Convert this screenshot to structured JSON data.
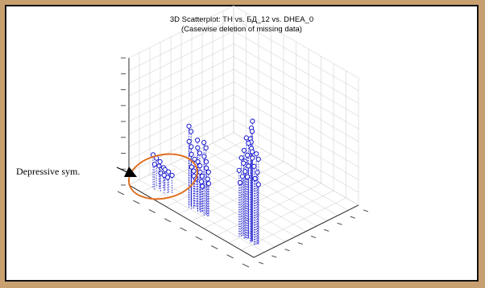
{
  "title_line1": "3D Scatterplot: TH vs. БД_12 vs. DHEA_0",
  "title_line2": "(Casewise deletion of missing data)",
  "annotation": "Depressive sym.",
  "colors": {
    "frame": "#c8a070",
    "panel": "#ffffff",
    "grid": "#c8c8c8",
    "points": "#1a1ad0",
    "ellipse": "#e07020",
    "arrow": "#000000"
  },
  "chart_data": {
    "type": "scatter",
    "title": "3D Scatterplot: TH vs. БД_12 vs. DHEA_0",
    "subtitle": "(Casewise deletion of missing data)",
    "axes": [
      "TH",
      "БД_12",
      "DHEA_0"
    ],
    "grid": true,
    "style": "3d scatter with vertical drop lines",
    "series": [
      {
        "group": "left cluster",
        "points": [
          {
            "x": 0.11,
            "y": 0.1,
            "z": 0.26
          },
          {
            "x": 0.12,
            "y": 0.12,
            "z": 0.23
          },
          {
            "x": 0.13,
            "y": 0.09,
            "z": 0.2
          },
          {
            "x": 0.15,
            "y": 0.11,
            "z": 0.19
          },
          {
            "x": 0.16,
            "y": 0.14,
            "z": 0.17
          },
          {
            "x": 0.17,
            "y": 0.1,
            "z": 0.15
          },
          {
            "x": 0.18,
            "y": 0.13,
            "z": 0.17
          },
          {
            "x": 0.19,
            "y": 0.11,
            "z": 0.14
          },
          {
            "x": 0.2,
            "y": 0.14,
            "z": 0.16
          },
          {
            "x": 0.21,
            "y": 0.12,
            "z": 0.13
          },
          {
            "x": 0.22,
            "y": 0.15,
            "z": 0.14
          },
          {
            "x": 0.14,
            "y": 0.13,
            "z": 0.21
          }
        ]
      },
      {
        "group": "middle cluster",
        "points": [
          {
            "x": 0.38,
            "y": 0.12,
            "z": 0.63
          },
          {
            "x": 0.38,
            "y": 0.14,
            "z": 0.58
          },
          {
            "x": 0.39,
            "y": 0.11,
            "z": 0.52
          },
          {
            "x": 0.39,
            "y": 0.13,
            "z": 0.47
          },
          {
            "x": 0.4,
            "y": 0.12,
            "z": 0.42
          },
          {
            "x": 0.4,
            "y": 0.15,
            "z": 0.37
          },
          {
            "x": 0.41,
            "y": 0.11,
            "z": 0.33
          },
          {
            "x": 0.41,
            "y": 0.13,
            "z": 0.29
          },
          {
            "x": 0.42,
            "y": 0.12,
            "z": 0.26
          },
          {
            "x": 0.42,
            "y": 0.14,
            "z": 0.23
          },
          {
            "x": 0.44,
            "y": 0.13,
            "z": 0.55
          },
          {
            "x": 0.45,
            "y": 0.12,
            "z": 0.5
          },
          {
            "x": 0.45,
            "y": 0.14,
            "z": 0.45
          },
          {
            "x": 0.46,
            "y": 0.11,
            "z": 0.4
          },
          {
            "x": 0.46,
            "y": 0.13,
            "z": 0.36
          },
          {
            "x": 0.47,
            "y": 0.12,
            "z": 0.32
          },
          {
            "x": 0.47,
            "y": 0.14,
            "z": 0.28
          },
          {
            "x": 0.48,
            "y": 0.12,
            "z": 0.25
          },
          {
            "x": 0.48,
            "y": 0.13,
            "z": 0.21
          },
          {
            "x": 0.5,
            "y": 0.12,
            "z": 0.57
          },
          {
            "x": 0.5,
            "y": 0.14,
            "z": 0.52
          },
          {
            "x": 0.51,
            "y": 0.11,
            "z": 0.47
          },
          {
            "x": 0.51,
            "y": 0.13,
            "z": 0.42
          },
          {
            "x": 0.52,
            "y": 0.12,
            "z": 0.38
          },
          {
            "x": 0.52,
            "y": 0.14,
            "z": 0.34
          },
          {
            "x": 0.53,
            "y": 0.12,
            "z": 0.3
          },
          {
            "x": 0.53,
            "y": 0.13,
            "z": 0.26
          }
        ]
      },
      {
        "group": "right cluster",
        "points": [
          {
            "x": 0.88,
            "y": 0.13,
            "z": 0.95
          },
          {
            "x": 0.88,
            "y": 0.12,
            "z": 0.9
          },
          {
            "x": 0.87,
            "y": 0.14,
            "z": 0.86
          },
          {
            "x": 0.88,
            "y": 0.11,
            "z": 0.82
          },
          {
            "x": 0.87,
            "y": 0.13,
            "z": 0.78
          },
          {
            "x": 0.88,
            "y": 0.12,
            "z": 0.74
          },
          {
            "x": 0.87,
            "y": 0.14,
            "z": 0.7
          },
          {
            "x": 0.88,
            "y": 0.13,
            "z": 0.66
          },
          {
            "x": 0.84,
            "y": 0.12,
            "z": 0.8
          },
          {
            "x": 0.84,
            "y": 0.14,
            "z": 0.75
          },
          {
            "x": 0.83,
            "y": 0.11,
            "z": 0.7
          },
          {
            "x": 0.84,
            "y": 0.13,
            "z": 0.66
          },
          {
            "x": 0.83,
            "y": 0.12,
            "z": 0.61
          },
          {
            "x": 0.84,
            "y": 0.14,
            "z": 0.57
          },
          {
            "x": 0.83,
            "y": 0.12,
            "z": 0.53
          },
          {
            "x": 0.84,
            "y": 0.13,
            "z": 0.49
          },
          {
            "x": 0.8,
            "y": 0.12,
            "z": 0.62
          },
          {
            "x": 0.8,
            "y": 0.14,
            "z": 0.57
          },
          {
            "x": 0.79,
            "y": 0.11,
            "z": 0.52
          },
          {
            "x": 0.8,
            "y": 0.13,
            "z": 0.47
          },
          {
            "x": 0.79,
            "y": 0.12,
            "z": 0.42
          },
          {
            "x": 0.92,
            "y": 0.12,
            "z": 0.72
          },
          {
            "x": 0.92,
            "y": 0.14,
            "z": 0.67
          },
          {
            "x": 0.91,
            "y": 0.11,
            "z": 0.62
          },
          {
            "x": 0.92,
            "y": 0.13,
            "z": 0.57
          },
          {
            "x": 0.91,
            "y": 0.12,
            "z": 0.52
          },
          {
            "x": 0.92,
            "y": 0.14,
            "z": 0.47
          }
        ]
      }
    ]
  }
}
